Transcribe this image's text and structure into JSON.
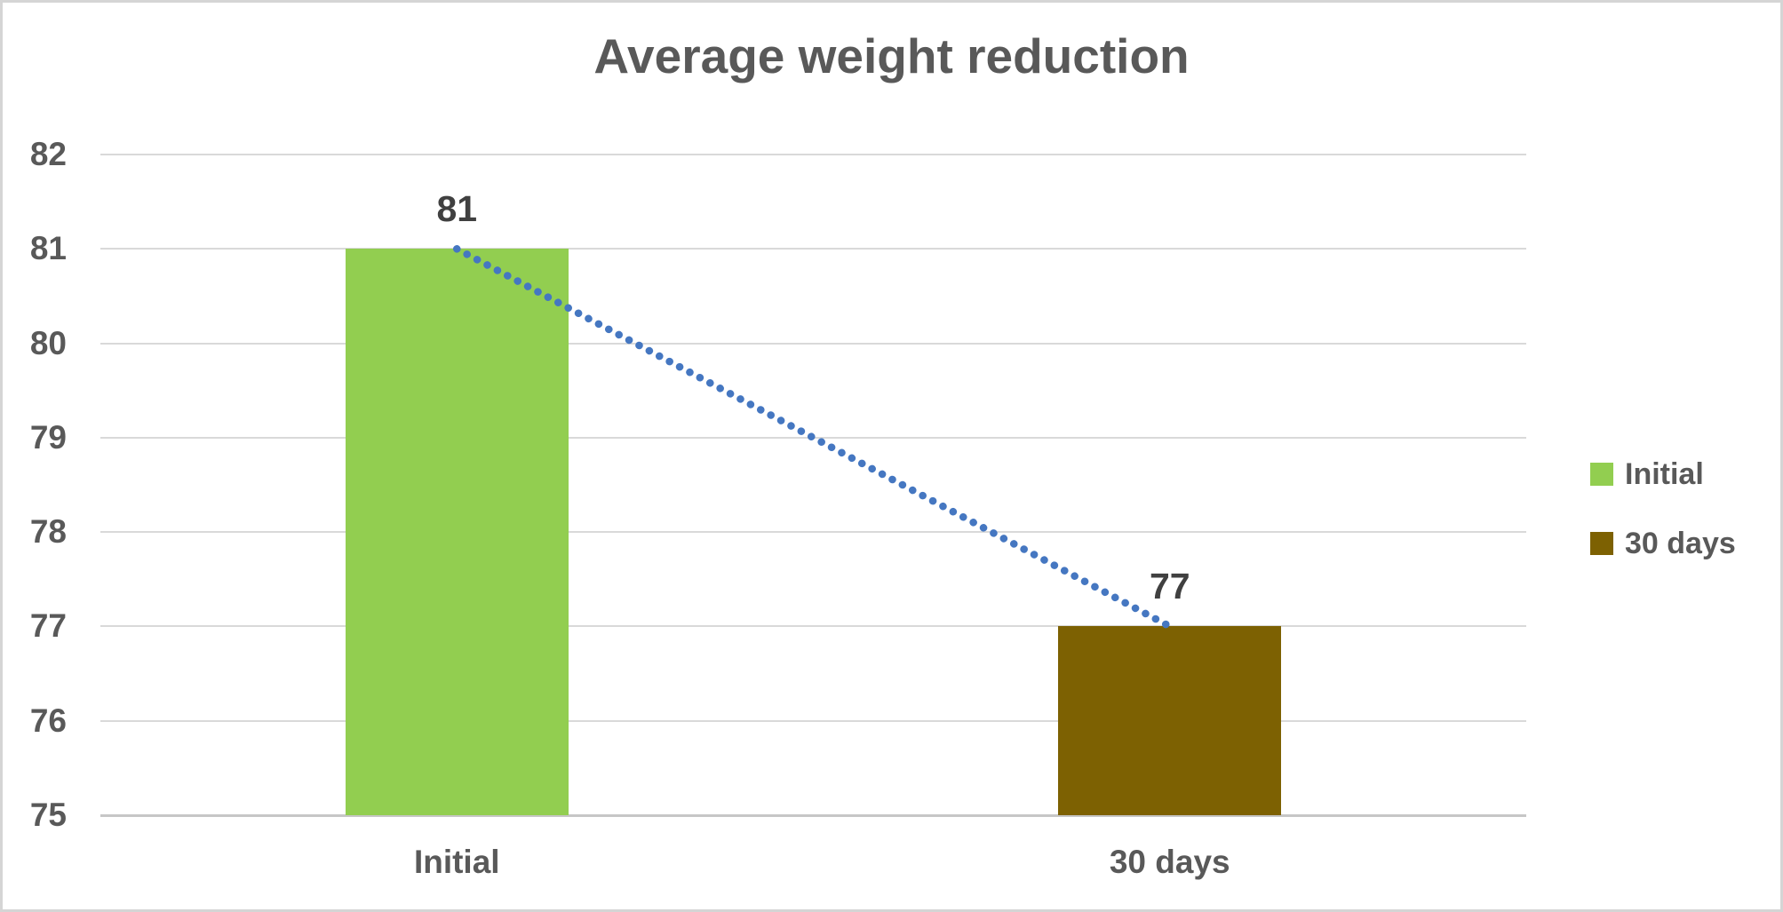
{
  "chart_data": {
    "type": "bar",
    "title": "Average weight reduction",
    "categories": [
      "Initial",
      "30 days"
    ],
    "values": [
      81,
      77
    ],
    "data_labels": [
      "81",
      "77"
    ],
    "bar_colors": [
      "#92CE50",
      "#7D6102"
    ],
    "yticks": [
      82,
      81,
      80,
      79,
      78,
      77,
      76,
      75
    ],
    "ylim": [
      75,
      82
    ],
    "grid": true,
    "legend": {
      "position": "right",
      "entries": [
        {
          "label": "Initial",
          "color": "#92CE50"
        },
        {
          "label": "30 days",
          "color": "#7D6102"
        }
      ]
    },
    "trendline": {
      "style": "dotted",
      "color": "#4577C1",
      "from_value": 81,
      "to_value": 77
    },
    "colors": {
      "title_text": "#595959",
      "axis_text": "#595959",
      "data_label_text": "#404040",
      "gridline": "#D9D9D9",
      "axis_line": "#C6C6C6",
      "canvas_border": "#D5D5D5",
      "background": "#FFFFFF"
    }
  }
}
